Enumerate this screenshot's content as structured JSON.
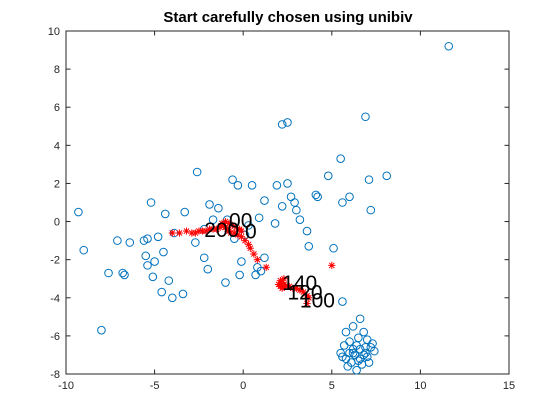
{
  "chart_data": {
    "type": "scatter",
    "title": "Start carefully chosen using unibiv",
    "xlabel": "",
    "ylabel": "",
    "xlim": [
      -10,
      15
    ],
    "ylim": [
      -8,
      10
    ],
    "xticks": [
      -10,
      -5,
      0,
      5,
      10,
      15
    ],
    "yticks": [
      -8,
      -6,
      -4,
      -2,
      0,
      2,
      4,
      6,
      8,
      10
    ],
    "grid": false,
    "legend": "none",
    "colors": {
      "observations": "#0072bd",
      "trajectory": "#ff0000",
      "axes": "#262626"
    },
    "series": [
      {
        "marker": "circle",
        "points": [
          [
            11.6,
            9.2
          ],
          [
            6.9,
            5.5
          ],
          [
            2.2,
            5.1
          ],
          [
            2.5,
            5.2
          ],
          [
            5.5,
            3.3
          ],
          [
            -2.6,
            2.6
          ],
          [
            4.8,
            2.4
          ],
          [
            8.1,
            2.4
          ],
          [
            -0.6,
            2.2
          ],
          [
            7.1,
            2.2
          ],
          [
            2.5,
            2.0
          ],
          [
            -0.3,
            1.9
          ],
          [
            0.5,
            1.9
          ],
          [
            1.9,
            1.9
          ],
          [
            4.1,
            1.4
          ],
          [
            4.2,
            1.3
          ],
          [
            6.0,
            1.3
          ],
          [
            1.2,
            1.1
          ],
          [
            2.7,
            1.3
          ],
          [
            5.6,
            1.0
          ],
          [
            -5.2,
            1.0
          ],
          [
            2.9,
            1.0
          ],
          [
            7.2,
            0.6
          ],
          [
            -1.9,
            0.9
          ],
          [
            2.2,
            0.8
          ],
          [
            -3.3,
            0.5
          ],
          [
            3.0,
            0.6
          ],
          [
            -9.3,
            0.5
          ],
          [
            -4.4,
            0.4
          ],
          [
            -1.4,
            0.7
          ],
          [
            0.9,
            0.2
          ],
          [
            3.2,
            0.1
          ],
          [
            -1.7,
            0.1
          ],
          [
            -0.9,
            0.1
          ],
          [
            1.8,
            -0.1
          ],
          [
            0.3,
            -0.2
          ],
          [
            -2.2,
            -0.4
          ],
          [
            3.6,
            -0.5
          ],
          [
            -3.9,
            -0.6
          ],
          [
            0.1,
            -0.7
          ],
          [
            -4.8,
            -0.8
          ],
          [
            -5.4,
            -0.9
          ],
          [
            -0.5,
            -0.9
          ],
          [
            -5.6,
            -1.0
          ],
          [
            -6.4,
            -1.1
          ],
          [
            -7.1,
            -1.0
          ],
          [
            -2.7,
            -1.1
          ],
          [
            3.7,
            -1.3
          ],
          [
            5.1,
            -1.4
          ],
          [
            -9.0,
            -1.5
          ],
          [
            -4.5,
            -1.6
          ],
          [
            -5.5,
            -1.8
          ],
          [
            1.2,
            -1.9
          ],
          [
            -2.2,
            -1.9
          ],
          [
            -5.0,
            -2.1
          ],
          [
            -0.1,
            -2.1
          ],
          [
            -5.4,
            -2.3
          ],
          [
            0.8,
            -2.4
          ],
          [
            -2.0,
            -2.5
          ],
          [
            -6.8,
            -2.7
          ],
          [
            -7.6,
            -2.7
          ],
          [
            1.0,
            -2.6
          ],
          [
            0.7,
            -2.8
          ],
          [
            -6.7,
            -2.8
          ],
          [
            -0.2,
            -2.8
          ],
          [
            -5.1,
            -2.9
          ],
          [
            -4.2,
            -3.1
          ],
          [
            -1.0,
            -3.2
          ],
          [
            -4.6,
            -3.7
          ],
          [
            -3.4,
            -3.8
          ],
          [
            -4.0,
            -4.0
          ],
          [
            -8.0,
            -5.7
          ],
          [
            5.6,
            -4.2
          ],
          [
            6.6,
            -5.1
          ],
          [
            6.2,
            -5.5
          ],
          [
            6.8,
            -5.8
          ],
          [
            5.8,
            -5.8
          ],
          [
            6.5,
            -6.1
          ],
          [
            7.0,
            -6.2
          ],
          [
            6.0,
            -6.3
          ],
          [
            7.3,
            -6.4
          ],
          [
            6.4,
            -6.5
          ],
          [
            5.7,
            -6.5
          ],
          [
            6.9,
            -6.6
          ],
          [
            6.2,
            -6.7
          ],
          [
            6.6,
            -6.7
          ],
          [
            7.4,
            -6.8
          ],
          [
            5.5,
            -6.9
          ],
          [
            6.0,
            -6.9
          ],
          [
            6.8,
            -7.0
          ],
          [
            6.3,
            -7.0
          ],
          [
            7.0,
            -7.1
          ],
          [
            5.8,
            -7.2
          ],
          [
            6.5,
            -7.3
          ],
          [
            6.1,
            -7.4
          ],
          [
            6.7,
            -7.5
          ],
          [
            7.1,
            -7.4
          ],
          [
            6.4,
            -7.8
          ],
          [
            5.9,
            -7.6
          ],
          [
            6.6,
            -7.2
          ],
          [
            6.2,
            -6.9
          ],
          [
            6.9,
            -6.9
          ],
          [
            5.6,
            -7.1
          ],
          [
            7.2,
            -6.6
          ]
        ]
      },
      {
        "marker": "asterisk",
        "points": [
          [
            5.0,
            -2.3
          ],
          [
            3.6,
            -4.3
          ],
          [
            3.7,
            -4.0
          ],
          [
            3.6,
            -3.9
          ],
          [
            3.4,
            -3.7
          ],
          [
            3.2,
            -3.6
          ],
          [
            3.0,
            -3.5
          ],
          [
            2.8,
            -3.5
          ],
          [
            2.6,
            -3.4
          ],
          [
            2.4,
            -3.4
          ],
          [
            2.3,
            -3.3
          ],
          [
            2.2,
            -3.2
          ],
          [
            2.2,
            -3.5
          ],
          [
            2.1,
            -3.4
          ],
          [
            2.0,
            -3.3
          ],
          [
            2.1,
            -3.1
          ],
          [
            2.3,
            -3.0
          ],
          [
            1.3,
            -2.4
          ],
          [
            0.8,
            -2.0
          ],
          [
            0.6,
            -1.7
          ],
          [
            0.4,
            -1.4
          ],
          [
            0.3,
            -1.2
          ],
          [
            0.1,
            -1.0
          ],
          [
            -0.1,
            -0.8
          ],
          [
            -0.3,
            -0.7
          ],
          [
            -0.5,
            -0.6
          ],
          [
            -0.7,
            -0.6
          ],
          [
            -0.8,
            -0.5
          ],
          [
            -0.9,
            -0.4
          ],
          [
            -1.0,
            -0.3
          ],
          [
            -1.1,
            -0.2
          ],
          [
            -1.2,
            -0.1
          ],
          [
            -1.0,
            -0.0
          ],
          [
            -0.8,
            -0.1
          ],
          [
            -0.6,
            -0.2
          ],
          [
            -0.4,
            -0.3
          ],
          [
            -0.2,
            -0.4
          ],
          [
            -0.1,
            -0.5
          ],
          [
            -1.3,
            -0.3
          ],
          [
            -1.5,
            -0.4
          ],
          [
            -1.7,
            -0.4
          ],
          [
            -1.9,
            -0.4
          ],
          [
            -2.1,
            -0.5
          ],
          [
            -2.3,
            -0.5
          ],
          [
            -2.5,
            -0.5
          ],
          [
            -2.7,
            -0.6
          ],
          [
            -2.9,
            -0.6
          ],
          [
            -3.2,
            -0.5
          ],
          [
            -3.6,
            -0.6
          ],
          [
            -4.0,
            -0.6
          ]
        ]
      }
    ],
    "annotations": [
      {
        "text": "140",
        "x": 2.2,
        "y": -3.6
      },
      {
        "text": "120",
        "x": 2.5,
        "y": -4.1
      },
      {
        "text": "100",
        "x": 3.2,
        "y": -4.5
      },
      {
        "text": "200",
        "x": -2.2,
        "y": -0.8
      },
      {
        "text": "00",
        "x": -0.8,
        "y": -0.3
      },
      {
        "text": "0",
        "x": 0.1,
        "y": -0.9
      }
    ]
  }
}
